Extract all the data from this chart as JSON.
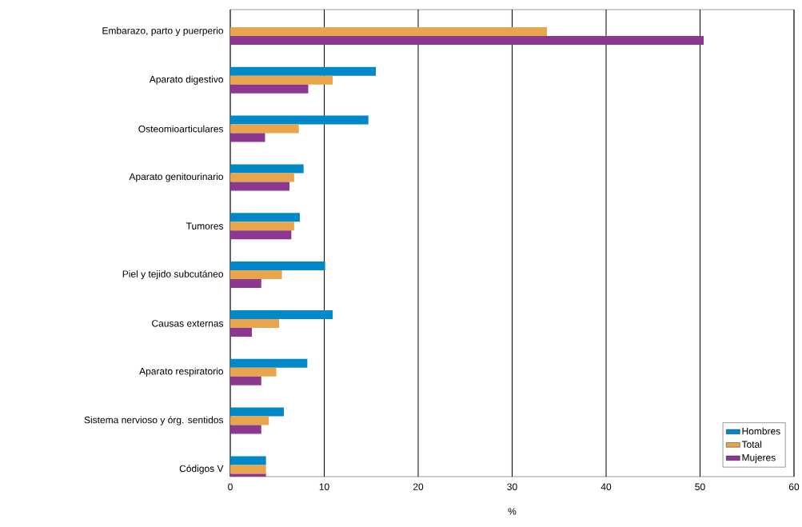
{
  "chart_data": {
    "type": "bar",
    "orientation": "horizontal",
    "xlabel": "%",
    "categories": [
      "Embarazo, parto y puerperio",
      "Aparato digestivo",
      "Osteomioarticulares",
      "Aparato genitourinario",
      "Tumores",
      "Piel y tejido subcutáneo",
      "Causas externas",
      "Aparato respiratorio",
      "Sistema nervioso y órg. sentidos",
      "Códigos V"
    ],
    "series": [
      {
        "name": "Hombres",
        "color": "#0088c8",
        "values": [
          0,
          15.5,
          14.7,
          7.8,
          7.4,
          10.1,
          10.9,
          8.2,
          5.7,
          3.8
        ]
      },
      {
        "name": "Total",
        "color": "#e8a54c",
        "values": [
          33.7,
          10.9,
          7.3,
          6.8,
          6.8,
          5.5,
          5.2,
          4.9,
          4.1,
          3.8
        ]
      },
      {
        "name": "Mujeres",
        "color": "#8c3890",
        "values": [
          50.4,
          8.3,
          3.7,
          6.3,
          6.5,
          3.3,
          2.3,
          3.3,
          3.3,
          3.8
        ]
      }
    ],
    "xlim": [
      0,
      60
    ],
    "xticks": [
      0,
      10,
      20,
      30,
      40,
      50,
      60
    ],
    "grid": "x",
    "legend": "bottom right"
  }
}
